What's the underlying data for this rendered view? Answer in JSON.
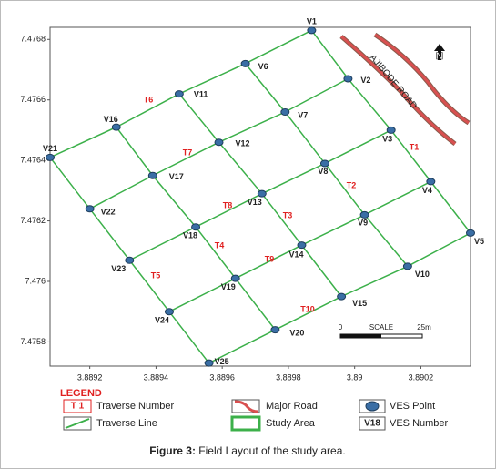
{
  "map": {
    "xlim": [
      3.88908,
      3.89035
    ],
    "ylim": [
      7.47572,
      7.47684
    ],
    "xticks": [
      3.8892,
      3.8894,
      3.8896,
      3.8898,
      3.89,
      3.8902
    ],
    "yticks": [
      7.4758,
      7.476,
      7.4762,
      7.4764,
      7.4766,
      7.4768
    ],
    "points": [
      {
        "name": "V1",
        "x": 3.88987,
        "y": 7.47683
      },
      {
        "name": "V2",
        "x": 3.88998,
        "y": 7.47667
      },
      {
        "name": "V3",
        "x": 3.89011,
        "y": 7.4765
      },
      {
        "name": "V4",
        "x": 3.89023,
        "y": 7.47633
      },
      {
        "name": "V5",
        "x": 3.89035,
        "y": 7.47616
      },
      {
        "name": "V6",
        "x": 3.88967,
        "y": 7.47672
      },
      {
        "name": "V7",
        "x": 3.88979,
        "y": 7.47656
      },
      {
        "name": "V8",
        "x": 3.88991,
        "y": 7.47639
      },
      {
        "name": "V9",
        "x": 3.89003,
        "y": 7.47622
      },
      {
        "name": "V10",
        "x": 3.89016,
        "y": 7.47605
      },
      {
        "name": "V11",
        "x": 3.88947,
        "y": 7.47662
      },
      {
        "name": "V12",
        "x": 3.88959,
        "y": 7.47646
      },
      {
        "name": "V13",
        "x": 3.88972,
        "y": 7.47629
      },
      {
        "name": "V14",
        "x": 3.88984,
        "y": 7.47612
      },
      {
        "name": "V15",
        "x": 3.88996,
        "y": 7.47595
      },
      {
        "name": "V16",
        "x": 3.88928,
        "y": 7.47651
      },
      {
        "name": "V17",
        "x": 3.88939,
        "y": 7.47635
      },
      {
        "name": "V18",
        "x": 3.88952,
        "y": 7.47618
      },
      {
        "name": "V19",
        "x": 3.88964,
        "y": 7.47601
      },
      {
        "name": "V20",
        "x": 3.88976,
        "y": 7.47584
      },
      {
        "name": "V21",
        "x": 3.88908,
        "y": 7.47641
      },
      {
        "name": "V22",
        "x": 3.8892,
        "y": 7.47624
      },
      {
        "name": "V23",
        "x": 3.88932,
        "y": 7.47607
      },
      {
        "name": "V24",
        "x": 3.88944,
        "y": 7.4759
      },
      {
        "name": "V25",
        "x": 3.88956,
        "y": 7.47573
      }
    ],
    "traverses": [
      {
        "label": "T1",
        "points": [
          "V1",
          "V2",
          "V3",
          "V4",
          "V5"
        ]
      },
      {
        "label": "T2",
        "points": [
          "V6",
          "V7",
          "V8",
          "V9",
          "V10"
        ]
      },
      {
        "label": "T3",
        "points": [
          "V11",
          "V12",
          "V13",
          "V14",
          "V15"
        ]
      },
      {
        "label": "T4",
        "points": [
          "V16",
          "V17",
          "V18",
          "V19",
          "V20"
        ]
      },
      {
        "label": "T5",
        "points": [
          "V21",
          "V22",
          "V23",
          "V24",
          "V25"
        ]
      },
      {
        "label": "T6",
        "points": [
          "V21",
          "V16",
          "V11",
          "V6",
          "V1"
        ]
      },
      {
        "label": "T7",
        "points": [
          "V22",
          "V17",
          "V12",
          "V7",
          "V2"
        ]
      },
      {
        "label": "T8",
        "points": [
          "V23",
          "V18",
          "V13",
          "V8",
          "V3"
        ]
      },
      {
        "label": "T9",
        "points": [
          "V24",
          "V19",
          "V14",
          "V9",
          "V4"
        ]
      },
      {
        "label": "T10",
        "points": [
          "V25",
          "V20",
          "V15",
          "V10",
          "V5"
        ]
      }
    ],
    "road_label": "AJIBODE ROAD",
    "north": "N",
    "scale": {
      "start": "0",
      "title": "SCALE",
      "end": "25m"
    },
    "legend": {
      "title": "LEGEND",
      "traverse_symbol": "T 1",
      "traverse_number": "Traverse Number",
      "traverse_line": "Traverse Line",
      "major_road": "Major Road",
      "study_area": "Study Area",
      "ves_point": "VES Point",
      "ves_symbol": "V18",
      "ves_number": "VES Number"
    },
    "caption": {
      "label": "Figure 3:",
      "text": " Field Layout of the study area."
    }
  }
}
